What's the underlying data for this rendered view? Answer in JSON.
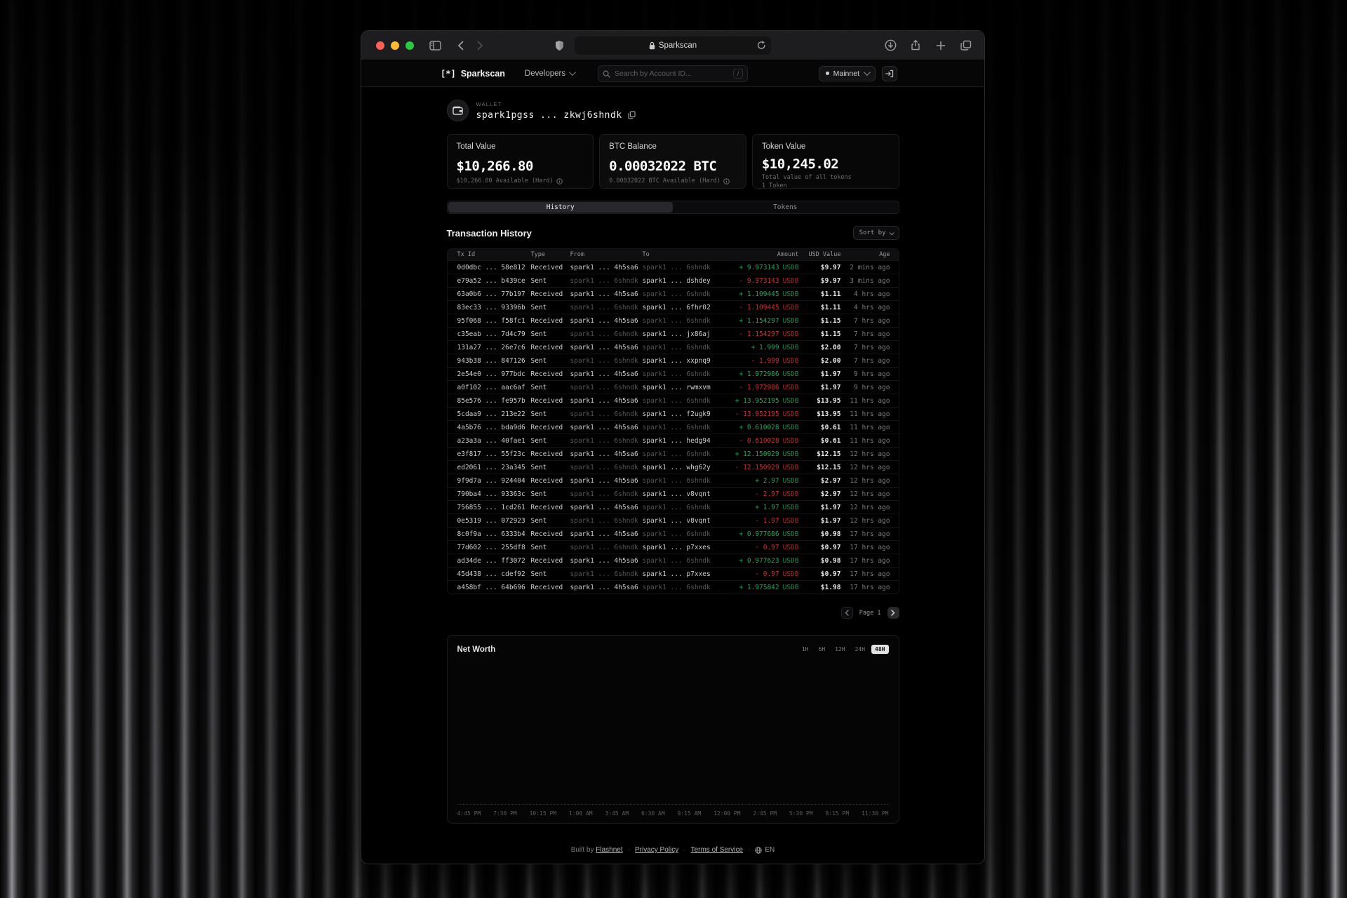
{
  "browser": {
    "url_text": "Sparkscan"
  },
  "nav": {
    "brand_mark": "[*]",
    "brand": "Sparkscan",
    "menu": "Developers",
    "search_placeholder": "Search by Account ID...",
    "search_shortcut": "/",
    "network": "Mainnet"
  },
  "wallet": {
    "label": "WALLET",
    "address": "spark1pgss ... zkwj6shndk"
  },
  "cards": [
    {
      "title": "Total Value",
      "value": "$10,266.80",
      "sub": "$10,266.80 Available (Hard)"
    },
    {
      "title": "BTC Balance",
      "value": "0.00032022 BTC",
      "sub": "0.00032022 BTC Available (Hard)"
    },
    {
      "title": "Token Value",
      "value": "$10,245.02",
      "sub": "Total value of all tokens",
      "sub2": "1 Token"
    }
  ],
  "tabs": [
    {
      "label": "History",
      "active": true
    },
    {
      "label": "Tokens",
      "active": false
    }
  ],
  "table": {
    "title": "Transaction History",
    "sort_label": "Sort by",
    "columns": [
      "Tx Id",
      "Type",
      "From",
      "To",
      "Amount",
      "USD Value",
      "Age"
    ],
    "token": "USDB",
    "rows": [
      {
        "id": "0d0dbc ... 58e812",
        "type": "Received",
        "from": "spark1 ... 4h5sa6",
        "to": "spark1 ... 6shndk",
        "sign": "+",
        "amount": "9.973143",
        "usd": "$9.97",
        "age": "2 mins ago"
      },
      {
        "id": "e79a52 ... b439ce",
        "type": "Sent",
        "from": "spark1 ... 6shndk",
        "to": "spark1 ... dshdey",
        "sign": "-",
        "amount": "9.973143",
        "usd": "$9.97",
        "age": "3 mins ago"
      },
      {
        "id": "63a0b6 ... 77b197",
        "type": "Received",
        "from": "spark1 ... 4h5sa6",
        "to": "spark1 ... 6shndk",
        "sign": "+",
        "amount": "1.109445",
        "usd": "$1.11",
        "age": "4 hrs ago"
      },
      {
        "id": "83ec33 ... 93396b",
        "type": "Sent",
        "from": "spark1 ... 6shndk",
        "to": "spark1 ... 6fhr02",
        "sign": "-",
        "amount": "1.109445",
        "usd": "$1.11",
        "age": "4 hrs ago"
      },
      {
        "id": "95f068 ... f58fc1",
        "type": "Received",
        "from": "spark1 ... 4h5sa6",
        "to": "spark1 ... 6shndk",
        "sign": "+",
        "amount": "1.154297",
        "usd": "$1.15",
        "age": "7 hrs ago"
      },
      {
        "id": "c35eab ... 7d4c79",
        "type": "Sent",
        "from": "spark1 ... 6shndk",
        "to": "spark1 ... jx86aj",
        "sign": "-",
        "amount": "1.154297",
        "usd": "$1.15",
        "age": "7 hrs ago"
      },
      {
        "id": "131a27 ... 26e7c6",
        "type": "Received",
        "from": "spark1 ... 4h5sa6",
        "to": "spark1 ... 6shndk",
        "sign": "+",
        "amount": "1.999",
        "usd": "$2.00",
        "age": "7 hrs ago"
      },
      {
        "id": "943b38 ... 847126",
        "type": "Sent",
        "from": "spark1 ... 6shndk",
        "to": "spark1 ... xxpnq9",
        "sign": "-",
        "amount": "1.999",
        "usd": "$2.00",
        "age": "7 hrs ago"
      },
      {
        "id": "2e54e0 ... 977bdc",
        "type": "Received",
        "from": "spark1 ... 4h5sa6",
        "to": "spark1 ... 6shndk",
        "sign": "+",
        "amount": "1.972986",
        "usd": "$1.97",
        "age": "9 hrs ago"
      },
      {
        "id": "a0f102 ... aac6af",
        "type": "Sent",
        "from": "spark1 ... 6shndk",
        "to": "spark1 ... rwmxvm",
        "sign": "-",
        "amount": "1.972986",
        "usd": "$1.97",
        "age": "9 hrs ago"
      },
      {
        "id": "85e576 ... fe957b",
        "type": "Received",
        "from": "spark1 ... 4h5sa6",
        "to": "spark1 ... 6shndk",
        "sign": "+",
        "amount": "13.952195",
        "usd": "$13.95",
        "age": "11 hrs ago"
      },
      {
        "id": "5cdaa9 ... 213e22",
        "type": "Sent",
        "from": "spark1 ... 6shndk",
        "to": "spark1 ... f2ugk9",
        "sign": "-",
        "amount": "13.952195",
        "usd": "$13.95",
        "age": "11 hrs ago"
      },
      {
        "id": "4a5b76 ... bda9d6",
        "type": "Received",
        "from": "spark1 ... 4h5sa6",
        "to": "spark1 ... 6shndk",
        "sign": "+",
        "amount": "0.610028",
        "usd": "$0.61",
        "age": "11 hrs ago"
      },
      {
        "id": "a23a3a ... 40fae1",
        "type": "Sent",
        "from": "spark1 ... 6shndk",
        "to": "spark1 ... hedg94",
        "sign": "-",
        "amount": "0.610028",
        "usd": "$0.61",
        "age": "11 hrs ago"
      },
      {
        "id": "e3f817 ... 55f23c",
        "type": "Received",
        "from": "spark1 ... 4h5sa6",
        "to": "spark1 ... 6shndk",
        "sign": "+",
        "amount": "12.150929",
        "usd": "$12.15",
        "age": "12 hrs ago"
      },
      {
        "id": "ed2061 ... 23a345",
        "type": "Sent",
        "from": "spark1 ... 6shndk",
        "to": "spark1 ... whg62y",
        "sign": "-",
        "amount": "12.150929",
        "usd": "$12.15",
        "age": "12 hrs ago"
      },
      {
        "id": "9f9d7a ... 924404",
        "type": "Received",
        "from": "spark1 ... 4h5sa6",
        "to": "spark1 ... 6shndk",
        "sign": "+",
        "amount": "2.97",
        "usd": "$2.97",
        "age": "12 hrs ago"
      },
      {
        "id": "790ba4 ... 93363c",
        "type": "Sent",
        "from": "spark1 ... 6shndk",
        "to": "spark1 ... v8vqnt",
        "sign": "-",
        "amount": "2.97",
        "usd": "$2.97",
        "age": "12 hrs ago"
      },
      {
        "id": "756855 ... 1cd261",
        "type": "Received",
        "from": "spark1 ... 4h5sa6",
        "to": "spark1 ... 6shndk",
        "sign": "+",
        "amount": "1.97",
        "usd": "$1.97",
        "age": "12 hrs ago"
      },
      {
        "id": "0e5319 ... 072923",
        "type": "Sent",
        "from": "spark1 ... 6shndk",
        "to": "spark1 ... v8vqnt",
        "sign": "-",
        "amount": "1.97",
        "usd": "$1.97",
        "age": "12 hrs ago"
      },
      {
        "id": "8c0f9a ... 6333b4",
        "type": "Received",
        "from": "spark1 ... 4h5sa6",
        "to": "spark1 ... 6shndk",
        "sign": "+",
        "amount": "0.977686",
        "usd": "$0.98",
        "age": "17 hrs ago"
      },
      {
        "id": "77d602 ... 255df8",
        "type": "Sent",
        "from": "spark1 ... 6shndk",
        "to": "spark1 ... p7xxes",
        "sign": "-",
        "amount": "0.97",
        "usd": "$0.97",
        "age": "17 hrs ago"
      },
      {
        "id": "ad34de ... ff3072",
        "type": "Received",
        "from": "spark1 ... 4h5sa6",
        "to": "spark1 ... 6shndk",
        "sign": "+",
        "amount": "0.977623",
        "usd": "$0.98",
        "age": "17 hrs ago"
      },
      {
        "id": "45d438 ... cdef92",
        "type": "Sent",
        "from": "spark1 ... 6shndk",
        "to": "spark1 ... p7xxes",
        "sign": "-",
        "amount": "0.97",
        "usd": "$0.97",
        "age": "17 hrs ago"
      },
      {
        "id": "a458bf ... 64b696",
        "type": "Received",
        "from": "spark1 ... 4h5sa6",
        "to": "spark1 ... 6shndk",
        "sign": "+",
        "amount": "1.975842",
        "usd": "$1.98",
        "age": "17 hrs ago"
      }
    ]
  },
  "pagination": {
    "page_label": "Page 1"
  },
  "networth": {
    "title": "Net Worth",
    "ranges": [
      "1H",
      "6H",
      "12H",
      "24H",
      "48H"
    ],
    "active_range": "48H"
  },
  "chart_data": {
    "type": "line",
    "title": "Net Worth",
    "x_labels": [
      "4:45 PM",
      "7:30 PM",
      "10:15 PM",
      "1:00 AM",
      "3:45 AM",
      "6:30 AM",
      "9:15 AM",
      "12:00 PM",
      "2:45 PM",
      "5:30 PM",
      "8:15 PM",
      "11:30 PM"
    ],
    "series": [],
    "note": "plot area renders empty/black in screenshot; only dotted baseline and time axis visible"
  },
  "footer": {
    "built_by": "Built by",
    "brand_link": "Flashnet",
    "links": [
      "Privacy Policy",
      "Terms of Service"
    ],
    "lang": "EN"
  },
  "colors": {
    "positive": "#1cab59",
    "negative": "#c63434",
    "traffic_red": "#ff5f57",
    "traffic_yellow": "#febc2e",
    "traffic_green": "#28c840"
  }
}
